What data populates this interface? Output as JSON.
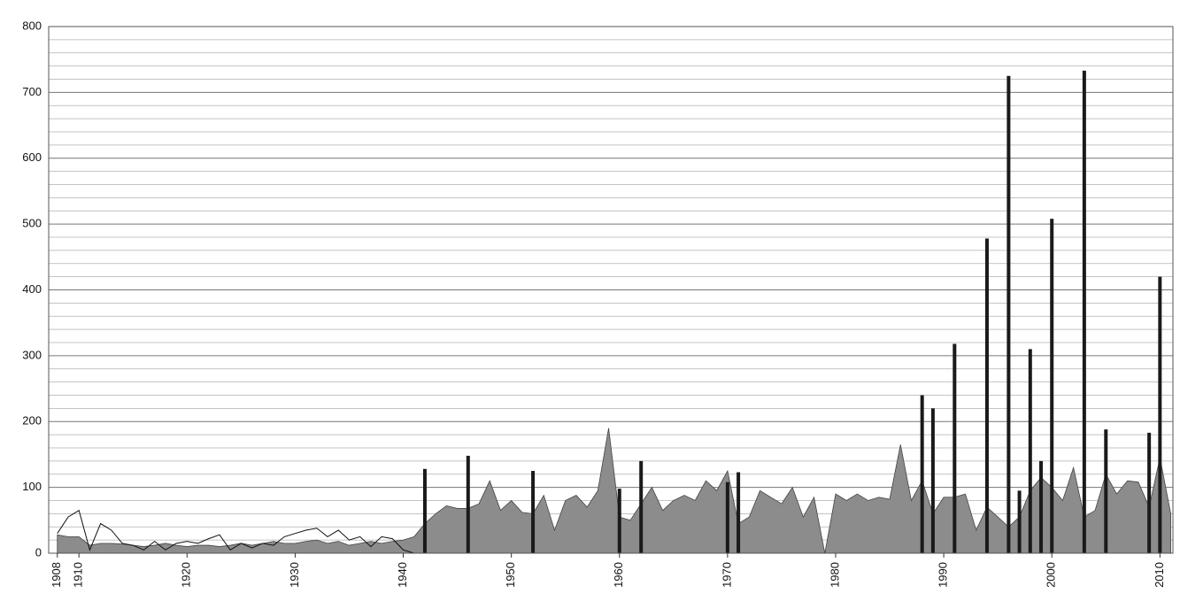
{
  "chart_data": {
    "type": "combo",
    "x": [
      1908,
      1909,
      1910,
      1911,
      1912,
      1913,
      1914,
      1915,
      1916,
      1917,
      1918,
      1919,
      1920,
      1921,
      1922,
      1923,
      1924,
      1925,
      1926,
      1927,
      1928,
      1929,
      1930,
      1931,
      1932,
      1933,
      1934,
      1935,
      1936,
      1937,
      1938,
      1939,
      1940,
      1941,
      1942,
      1943,
      1944,
      1945,
      1946,
      1947,
      1948,
      1949,
      1950,
      1951,
      1952,
      1953,
      1954,
      1955,
      1956,
      1957,
      1958,
      1959,
      1960,
      1961,
      1962,
      1963,
      1964,
      1965,
      1966,
      1967,
      1968,
      1969,
      1970,
      1971,
      1972,
      1973,
      1974,
      1975,
      1976,
      1977,
      1978,
      1979,
      1980,
      1981,
      1982,
      1983,
      1984,
      1985,
      1986,
      1987,
      1988,
      1989,
      1990,
      1991,
      1992,
      1993,
      1994,
      1995,
      1996,
      1997,
      1998,
      1999,
      2000,
      2001,
      2002,
      2003,
      2004,
      2005,
      2006,
      2007,
      2008,
      2009,
      2010,
      2011
    ],
    "series": [
      {
        "type": "area",
        "color": "#8c8c8c",
        "values": [
          28,
          25,
          25,
          12,
          15,
          15,
          14,
          12,
          10,
          12,
          15,
          12,
          10,
          12,
          12,
          10,
          12,
          15,
          12,
          15,
          18,
          15,
          15,
          18,
          20,
          15,
          18,
          12,
          15,
          18,
          15,
          18,
          20,
          25,
          45,
          60,
          72,
          68,
          68,
          75,
          110,
          65,
          80,
          62,
          60,
          88,
          35,
          80,
          88,
          70,
          95,
          190,
          55,
          50,
          75,
          100,
          65,
          80,
          88,
          80,
          110,
          95,
          125,
          45,
          55,
          95,
          85,
          75,
          100,
          55,
          85,
          0,
          90,
          80,
          90,
          80,
          85,
          82,
          165,
          80,
          110,
          60,
          85,
          85,
          90,
          35,
          70,
          55,
          40,
          55,
          95,
          115,
          100,
          80,
          130,
          55,
          65,
          120,
          90,
          110,
          108,
          70,
          145,
          60
        ]
      },
      {
        "type": "line",
        "color": "#111111",
        "values": [
          30,
          55,
          65,
          5,
          45,
          35,
          15,
          12,
          5,
          18,
          5,
          15,
          18,
          15,
          22,
          28,
          5,
          15,
          8,
          15,
          12,
          25,
          30,
          35,
          38,
          25,
          35,
          20,
          25,
          10,
          25,
          22,
          5,
          0,
          null,
          null,
          null,
          null,
          null,
          null,
          null,
          null,
          null,
          null,
          null,
          null,
          null,
          null,
          null,
          null,
          null,
          null,
          null,
          null,
          null,
          null,
          null,
          null,
          null,
          null,
          null,
          null,
          null,
          null,
          null,
          null,
          null,
          null,
          null,
          null,
          null,
          null,
          null,
          null,
          null,
          null,
          null,
          null,
          null,
          null,
          null,
          null,
          null,
          null,
          null,
          null,
          null,
          null,
          null,
          null,
          null,
          null,
          null,
          null,
          null,
          null,
          null,
          null,
          null,
          null,
          null,
          null,
          null,
          null
        ]
      },
      {
        "type": "bar",
        "color": "#1a1a1a",
        "values": [
          null,
          null,
          null,
          null,
          null,
          null,
          null,
          null,
          null,
          null,
          null,
          null,
          null,
          null,
          null,
          null,
          null,
          null,
          null,
          null,
          null,
          null,
          null,
          null,
          null,
          null,
          null,
          null,
          null,
          null,
          null,
          null,
          null,
          null,
          128,
          null,
          null,
          null,
          148,
          null,
          null,
          null,
          null,
          null,
          125,
          null,
          null,
          null,
          null,
          null,
          null,
          null,
          98,
          null,
          140,
          null,
          null,
          null,
          null,
          null,
          null,
          null,
          108,
          123,
          null,
          null,
          null,
          null,
          null,
          null,
          null,
          null,
          null,
          null,
          null,
          null,
          null,
          null,
          null,
          null,
          240,
          220,
          null,
          318,
          null,
          null,
          478,
          null,
          725,
          95,
          310,
          140,
          508,
          null,
          null,
          733,
          null,
          188,
          null,
          null,
          null,
          183,
          420,
          null
        ]
      }
    ],
    "xlim": [
      1907.2,
      2011.2
    ],
    "xticks": [
      1908,
      1910,
      1920,
      1930,
      1940,
      1950,
      1960,
      1970,
      1980,
      1990,
      2000,
      2010
    ],
    "ylim": [
      0,
      800
    ],
    "yticks": [
      0,
      100,
      200,
      300,
      400,
      500,
      600,
      700,
      800
    ],
    "yminorticks": [
      20,
      40,
      60,
      80,
      120,
      140,
      160,
      180,
      220,
      240,
      260,
      280,
      320,
      340,
      360,
      380,
      420,
      440,
      460,
      480,
      520,
      540,
      560,
      580,
      620,
      640,
      660,
      680,
      720,
      740,
      760,
      780
    ],
    "grid": true
  }
}
